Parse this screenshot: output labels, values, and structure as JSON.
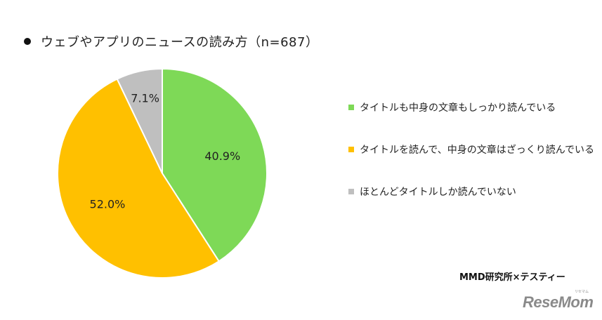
{
  "header": {
    "title": "ウェブやアプリのニュースの読み方（n=687）"
  },
  "chart_data": {
    "type": "pie",
    "title": "ウェブやアプリのニュースの読み方（n=687）",
    "unit": "%",
    "start_angle_deg": 0,
    "direction": "clockwise",
    "slices": [
      {
        "label": "タイトルも中身の文章もしっかり読んでいる",
        "value": 40.9,
        "display": "40.9%",
        "color": "#7ed957"
      },
      {
        "label": "タイトルを読んで、中身の文章はざっくり読んでいる",
        "value": 52.0,
        "display": "52.0%",
        "color": "#ffc000"
      },
      {
        "label": "ほとんどタイトルしか読んでいない",
        "value": 7.1,
        "display": "7.1%",
        "color": "#bfbfbf"
      }
    ],
    "legend_position": "right"
  },
  "legend": {
    "items": [
      {
        "label": "タイトルも中身の文章もしっかり読んでいる",
        "color": "#7ed957"
      },
      {
        "label": "タイトルを読んで、中身の文章はざっくり読んでいる",
        "color": "#ffc000"
      },
      {
        "label": "ほとんどタイトルしか読んでいない",
        "color": "#bfbfbf"
      }
    ]
  },
  "source": "MMD研究所×テスティー",
  "logo": {
    "text": "ReseMom",
    "sub": "リセマム"
  }
}
